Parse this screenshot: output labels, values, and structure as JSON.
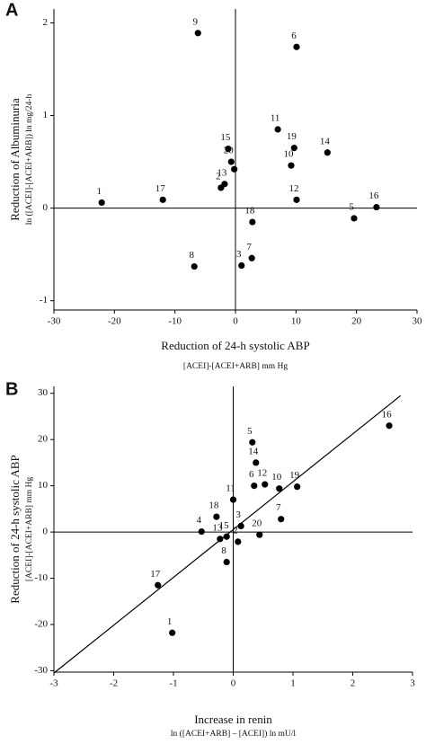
{
  "chart_data": [
    {
      "type": "scatter",
      "panel": "A",
      "x_label": "Reduction of 24-h systolic ABP",
      "x_sublabel": "[ACEI]-[ACEI+ARB] mm Hg",
      "y_label": "Reduction of Albuminuria",
      "y_sublabel": "ln ([ACEI]-[ACEI+ARB]) ln mg/24-h",
      "xlim": [
        -30,
        30
      ],
      "xticks": [
        -30,
        -20,
        -10,
        0,
        10,
        20,
        30
      ],
      "ylim": [
        -1.1,
        2.15
      ],
      "yticks": [
        -1,
        0,
        1,
        2
      ],
      "color": "#000000",
      "point_labels": [
        "1",
        "17",
        "9",
        "8",
        "15",
        "20",
        null,
        "2",
        "13",
        "6",
        "11",
        "19",
        "10",
        "14",
        "12",
        "18",
        "3",
        "7",
        "5",
        "16"
      ],
      "x": [
        -22.1,
        -12.0,
        -6.2,
        -6.8,
        -1.2,
        -0.7,
        -0.2,
        -2.4,
        -1.8,
        10.1,
        7.0,
        9.7,
        9.2,
        15.2,
        10.1,
        2.8,
        1.0,
        2.7,
        19.6,
        23.3
      ],
      "values": [
        0.06,
        0.09,
        1.89,
        -0.63,
        0.64,
        0.5,
        0.42,
        0.22,
        0.26,
        1.74,
        0.85,
        0.65,
        0.46,
        0.6,
        0.09,
        -0.15,
        -0.62,
        -0.54,
        -0.11,
        0.01
      ]
    },
    {
      "type": "scatter",
      "panel": "B",
      "x_label": "Increase in renin",
      "x_sublabel": "ln ([ACEI+ARB] – [ACEI]) ln mU/l",
      "y_label": "Reduction of 24-h systolic ABP",
      "y_sublabel": "[ACEI]-[ACEI+ARB] mm Hg",
      "xlim": [
        -3,
        3
      ],
      "xticks": [
        -3,
        -2,
        -1,
        0,
        1,
        2,
        3
      ],
      "ylim": [
        -30.3,
        31.5
      ],
      "yticks": [
        -30,
        -20,
        -10,
        0,
        10,
        20,
        30
      ],
      "color": "#000000",
      "point_labels": [
        "16",
        "5",
        "14",
        "6",
        "12",
        "10",
        "19",
        "11",
        "18",
        "3",
        "7",
        "4",
        "15",
        "13",
        "2",
        "20",
        "8",
        "17",
        "1"
      ],
      "x": [
        2.61,
        0.32,
        0.38,
        0.35,
        0.53,
        0.77,
        1.07,
        0.0,
        -0.28,
        0.13,
        0.8,
        -0.53,
        -0.11,
        -0.22,
        0.08,
        0.44,
        -0.11,
        -1.26,
        -1.02
      ],
      "values": [
        23.0,
        19.4,
        15.0,
        10.0,
        10.3,
        9.4,
        9.8,
        7.0,
        3.3,
        1.3,
        2.8,
        0.1,
        -1.0,
        -1.5,
        -2.1,
        -0.6,
        -6.5,
        -11.5,
        -21.8
      ],
      "trend_line": {
        "x": [
          -3,
          2.8
        ],
        "y": [
          -30.5,
          29.5
        ]
      }
    }
  ]
}
